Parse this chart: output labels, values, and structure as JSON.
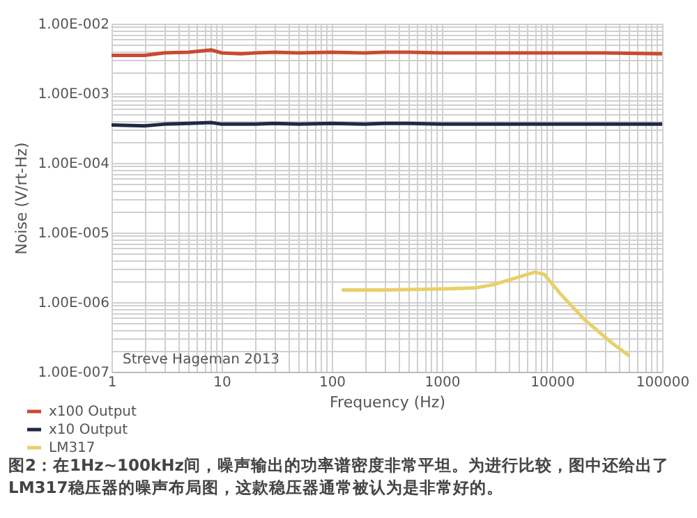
{
  "chart_data": {
    "type": "line",
    "xlabel": "Frequency (Hz)",
    "ylabel": "Noise (V/rt-Hz)",
    "log": "xy",
    "grid": true,
    "legend": "bottom left",
    "xlim": [
      1,
      100000
    ],
    "ylim": [
      1e-07,
      0.01
    ],
    "xticks": [
      1,
      {
        "value": 2,
        "label": null
      },
      {
        "value": 3,
        "label": null
      },
      {
        "value": 4,
        "label": null
      },
      {
        "value": 5,
        "label": null
      },
      {
        "value": 6,
        "label": null
      },
      {
        "value": 7,
        "label": null
      },
      {
        "value": 8,
        "label": null
      },
      {
        "value": 9,
        "label": null
      },
      10,
      {
        "value": 20,
        "label": null
      },
      {
        "value": 30,
        "label": null
      },
      {
        "value": 40,
        "label": null
      },
      {
        "value": 50,
        "label": null
      },
      {
        "value": 60,
        "label": null
      },
      {
        "value": 70,
        "label": null
      },
      {
        "value": 80,
        "label": null
      },
      {
        "value": 90,
        "label": null
      },
      100,
      {
        "value": 200,
        "label": null
      },
      {
        "value": 300,
        "label": null
      },
      {
        "value": 400,
        "label": null
      },
      {
        "value": 500,
        "label": null
      },
      {
        "value": 600,
        "label": null
      },
      {
        "value": 700,
        "label": null
      },
      {
        "value": 800,
        "label": null
      },
      {
        "value": 900,
        "label": null
      },
      1000,
      {
        "value": 2000,
        "label": null
      },
      {
        "value": 3000,
        "label": null
      },
      {
        "value": 4000,
        "label": null
      },
      {
        "value": 5000,
        "label": null
      },
      {
        "value": 6000,
        "label": null
      },
      {
        "value": 7000,
        "label": null
      },
      {
        "value": 8000,
        "label": null
      },
      {
        "value": 9000,
        "label": null
      },
      10000,
      {
        "value": 20000,
        "label": null
      },
      {
        "value": 30000,
        "label": null
      },
      {
        "value": 40000,
        "label": null
      },
      {
        "value": 50000,
        "label": null
      },
      {
        "value": 60000,
        "label": null
      },
      {
        "value": 70000,
        "label": null
      },
      {
        "value": 80000,
        "label": null
      },
      {
        "value": 90000,
        "label": null
      },
      100000
    ],
    "yticks": [
      {
        "value": 1e-07,
        "label": "1.00E-007"
      },
      {
        "value": 2e-07,
        "label": null
      },
      {
        "value": 3e-07,
        "label": null
      },
      {
        "value": 4e-07,
        "label": null
      },
      {
        "value": 5e-07,
        "label": null
      },
      {
        "value": 6e-07,
        "label": null
      },
      {
        "value": 7e-07,
        "label": null
      },
      {
        "value": 8e-07,
        "label": null
      },
      {
        "value": 9e-07,
        "label": null
      },
      {
        "value": 1e-06,
        "label": "1.00E-006"
      },
      {
        "value": 2e-06,
        "label": null
      },
      {
        "value": 3e-06,
        "label": null
      },
      {
        "value": 4e-06,
        "label": null
      },
      {
        "value": 5e-06,
        "label": null
      },
      {
        "value": 6e-06,
        "label": null
      },
      {
        "value": 7e-06,
        "label": null
      },
      {
        "value": 8e-06,
        "label": null
      },
      {
        "value": 9e-06,
        "label": null
      },
      {
        "value": 1e-05,
        "label": "1.00E-005"
      },
      {
        "value": 2e-05,
        "label": null
      },
      {
        "value": 3e-05,
        "label": null
      },
      {
        "value": 4e-05,
        "label": null
      },
      {
        "value": 5e-05,
        "label": null
      },
      {
        "value": 6e-05,
        "label": null
      },
      {
        "value": 7e-05,
        "label": null
      },
      {
        "value": 8e-05,
        "label": null
      },
      {
        "value": 9e-05,
        "label": null
      },
      {
        "value": 0.0001,
        "label": "1.00E-004"
      },
      {
        "value": 0.0002,
        "label": null
      },
      {
        "value": 0.0003,
        "label": null
      },
      {
        "value": 0.0004,
        "label": null
      },
      {
        "value": 0.0005,
        "label": null
      },
      {
        "value": 0.0006,
        "label": null
      },
      {
        "value": 0.0007,
        "label": null
      },
      {
        "value": 0.0008,
        "label": null
      },
      {
        "value": 0.0009,
        "label": null
      },
      {
        "value": 0.001,
        "label": "1.00E-003"
      },
      {
        "value": 0.002,
        "label": null
      },
      {
        "value": 0.003,
        "label": null
      },
      {
        "value": 0.004,
        "label": null
      },
      {
        "value": 0.005,
        "label": null
      },
      {
        "value": 0.006,
        "label": null
      },
      {
        "value": 0.007,
        "label": null
      },
      {
        "value": 0.008,
        "label": null
      },
      {
        "value": 0.009,
        "label": null
      },
      {
        "value": 0.01,
        "label": "1.00E-002"
      }
    ],
    "series": [
      {
        "name": "x100 Output",
        "color": "#c84a32",
        "x": [
          1,
          2,
          3,
          5,
          8,
          10,
          15,
          20,
          30,
          50,
          100,
          200,
          300,
          500,
          1000,
          3000,
          10000,
          30000,
          100000
        ],
        "values": [
          0.0035,
          0.0035,
          0.0038,
          0.0039,
          0.0042,
          0.0038,
          0.0037,
          0.0038,
          0.0039,
          0.0038,
          0.0039,
          0.0038,
          0.0039,
          0.0039,
          0.0038,
          0.0038,
          0.0038,
          0.0038,
          0.0037
        ]
      },
      {
        "name": "x10 Output",
        "color": "#1e2a45",
        "x": [
          1,
          2,
          3,
          5,
          8,
          10,
          20,
          30,
          50,
          100,
          200,
          300,
          500,
          1000,
          3000,
          10000,
          30000,
          100000
        ],
        "values": [
          0.00035,
          0.00034,
          0.00036,
          0.00037,
          0.00038,
          0.00036,
          0.00036,
          0.00037,
          0.00036,
          0.00037,
          0.00036,
          0.00037,
          0.00037,
          0.00036,
          0.00036,
          0.00036,
          0.00036,
          0.00036
        ]
      },
      {
        "name": "LM317",
        "color": "#e8d06a",
        "x": [
          123,
          300,
          1000,
          2000,
          3000,
          5000,
          7000,
          8500,
          12000,
          20000,
          35000,
          50000
        ],
        "values": [
          1.5e-06,
          1.5e-06,
          1.55e-06,
          1.6e-06,
          1.8e-06,
          2.3e-06,
          2.7e-06,
          2.5e-06,
          1.3e-06,
          5.5e-07,
          2.6e-07,
          1.7e-07
        ]
      }
    ],
    "annotations": [
      "Streve Hageman 2013",
      "图2：在1Hz~100kHz间，噪声输出的功率谱密度非常平坦。为进行比较，图中还给出了LM317稳压器的噪声布局图，这款稳压器通常被认为是非常好的。"
    ]
  }
}
